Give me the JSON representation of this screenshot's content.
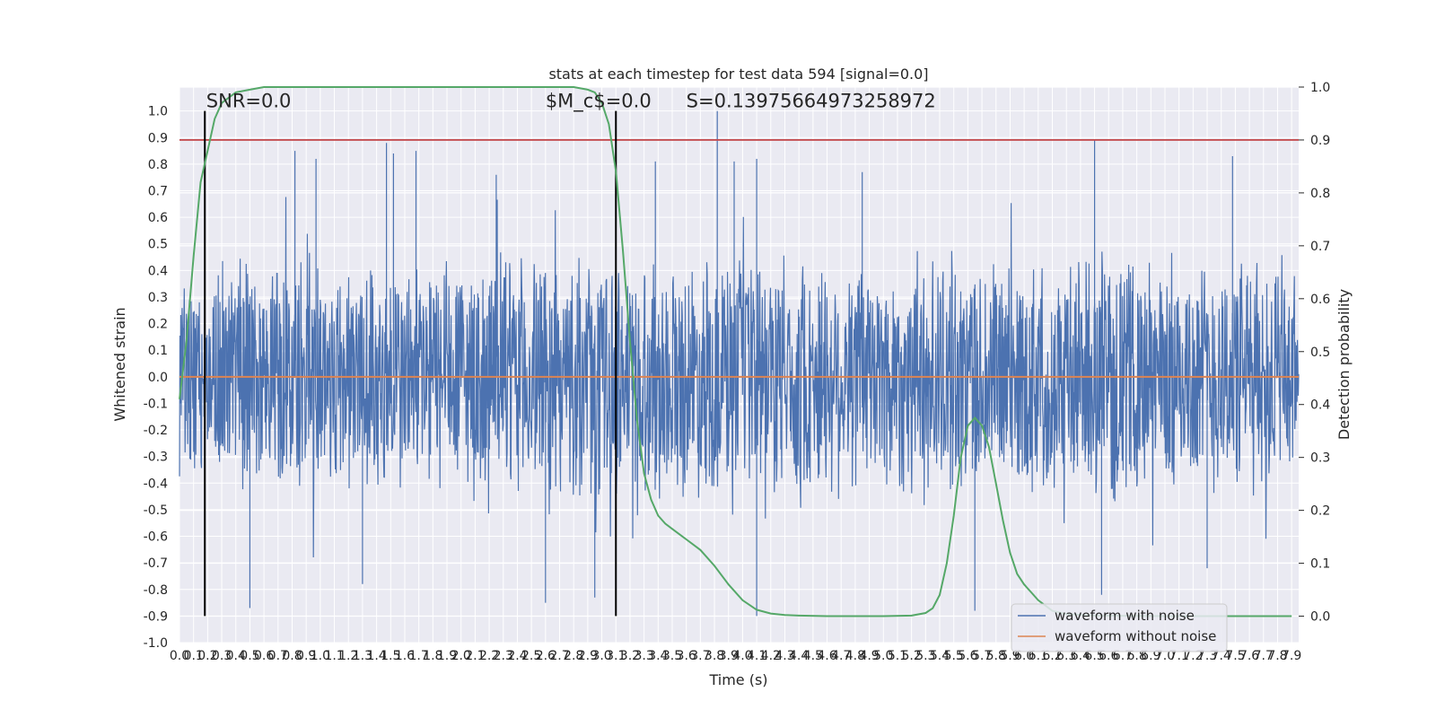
{
  "chart_data": {
    "type": "line",
    "title": "stats at each timestep for test data 594 [signal=0.0]",
    "xlabel": "Time (s)",
    "ylabel": "Whitened strain",
    "y2label": "Detection probability",
    "xlim": [
      0.0,
      7.95
    ],
    "ylim": [
      -1.0,
      1.09
    ],
    "y2lim": [
      -0.05,
      1.0
    ],
    "x_tick_step": 0.1,
    "x_tick_max": 7.9,
    "yticks": [
      "1.0",
      "0.9",
      "0.8",
      "0.7",
      "0.6",
      "0.5",
      "0.4",
      "0.3",
      "0.2",
      "0.1",
      "0.0",
      "-0.1",
      "-0.2",
      "-0.3",
      "-0.4",
      "-0.5",
      "-0.6",
      "-0.7",
      "-0.8",
      "-0.9",
      "-1.0"
    ],
    "y2ticks": [
      "1.0",
      "0.9",
      "0.8",
      "0.7",
      "0.6",
      "0.5",
      "0.4",
      "0.3",
      "0.2",
      "0.1",
      "0.0"
    ],
    "grid": true,
    "legend_position": "bottom-right",
    "colors": {
      "background": "#eaeaf2",
      "grid": "#ffffff",
      "noisy": "#4c72b0",
      "clean": "#dd8452",
      "probability": "#55a868",
      "threshold": "#c44e52",
      "marker": "#000000"
    },
    "annotations": [
      {
        "name": "snr",
        "text": "SNR=0.0",
        "x": 0.19,
        "y": 1.0
      },
      {
        "name": "mc",
        "text": "$M_c$=0.0",
        "x": 2.6,
        "y": 1.0
      },
      {
        "name": "s",
        "text": "S=0.13975664973258972",
        "x": 3.6,
        "y": 1.0
      }
    ],
    "vertical_lines": [
      {
        "x": 0.18,
        "ymin": -0.9,
        "ymax": 1.0
      },
      {
        "x": 3.1,
        "ymin": -0.9,
        "ymax": 1.0
      }
    ],
    "threshold": {
      "axis": "y2",
      "value": 0.9
    },
    "series": [
      {
        "name": "waveform with noise",
        "axis": "y",
        "kind": "noise",
        "note_values": "dense noise, typical envelope about ±0.45, peaks up to about 1.0 / down to about -0.9",
        "envelope_min": -0.9,
        "envelope_max": 1.0,
        "spikes_up": [
          [
            0.82,
            0.85
          ],
          [
            0.97,
            0.82
          ],
          [
            1.47,
            0.88
          ],
          [
            1.52,
            0.84
          ],
          [
            1.68,
            0.85
          ],
          [
            2.25,
            0.76
          ],
          [
            3.38,
            0.81
          ],
          [
            3.82,
            1.0
          ],
          [
            3.94,
            0.81
          ],
          [
            4.1,
            0.82
          ],
          [
            4.85,
            0.77
          ],
          [
            6.5,
            0.89
          ],
          [
            7.48,
            0.83
          ]
        ],
        "spikes_down": [
          [
            0.5,
            -0.87
          ],
          [
            1.3,
            -0.78
          ],
          [
            2.6,
            -0.85
          ],
          [
            2.95,
            -0.83
          ],
          [
            4.1,
            -0.9
          ],
          [
            5.65,
            -0.88
          ],
          [
            6.55,
            -0.82
          ],
          [
            7.3,
            -0.72
          ]
        ]
      },
      {
        "name": "waveform without noise",
        "axis": "y",
        "x": [
          0.0,
          7.95
        ],
        "values": [
          0.0,
          0.0
        ]
      },
      {
        "name": "",
        "axis": "y2",
        "x": [
          0.0,
          0.05,
          0.1,
          0.15,
          0.2,
          0.25,
          0.3,
          0.4,
          0.5,
          0.6,
          0.8,
          1.0,
          1.5,
          2.0,
          2.5,
          2.8,
          2.9,
          2.95,
          3.0,
          3.05,
          3.1,
          3.15,
          3.2,
          3.25,
          3.3,
          3.35,
          3.4,
          3.45,
          3.5,
          3.6,
          3.7,
          3.8,
          3.9,
          4.0,
          4.1,
          4.2,
          4.3,
          4.4,
          4.6,
          4.8,
          5.0,
          5.2,
          5.3,
          5.35,
          5.4,
          5.45,
          5.5,
          5.55,
          5.6,
          5.65,
          5.7,
          5.75,
          5.8,
          5.85,
          5.9,
          5.95,
          6.0,
          6.05,
          6.1,
          6.15,
          6.2,
          6.3,
          6.5,
          7.0,
          7.5,
          7.9
        ],
        "values": [
          0.41,
          0.52,
          0.68,
          0.82,
          0.88,
          0.94,
          0.97,
          0.99,
          0.995,
          1.0,
          1.0,
          1.0,
          1.0,
          1.0,
          1.0,
          1.0,
          0.995,
          0.99,
          0.97,
          0.93,
          0.84,
          0.69,
          0.52,
          0.37,
          0.27,
          0.22,
          0.19,
          0.175,
          0.165,
          0.145,
          0.125,
          0.095,
          0.06,
          0.03,
          0.012,
          0.005,
          0.002,
          0.001,
          0.0,
          0.0,
          0.0,
          0.001,
          0.006,
          0.015,
          0.04,
          0.1,
          0.19,
          0.3,
          0.36,
          0.375,
          0.36,
          0.32,
          0.25,
          0.18,
          0.12,
          0.08,
          0.06,
          0.045,
          0.03,
          0.02,
          0.01,
          0.004,
          0.001,
          0.0,
          0.0,
          0.0
        ]
      }
    ],
    "legend": {
      "items": [
        {
          "label": "waveform with noise",
          "color": "#4c72b0"
        },
        {
          "label": "waveform without noise",
          "color": "#dd8452"
        }
      ]
    }
  }
}
